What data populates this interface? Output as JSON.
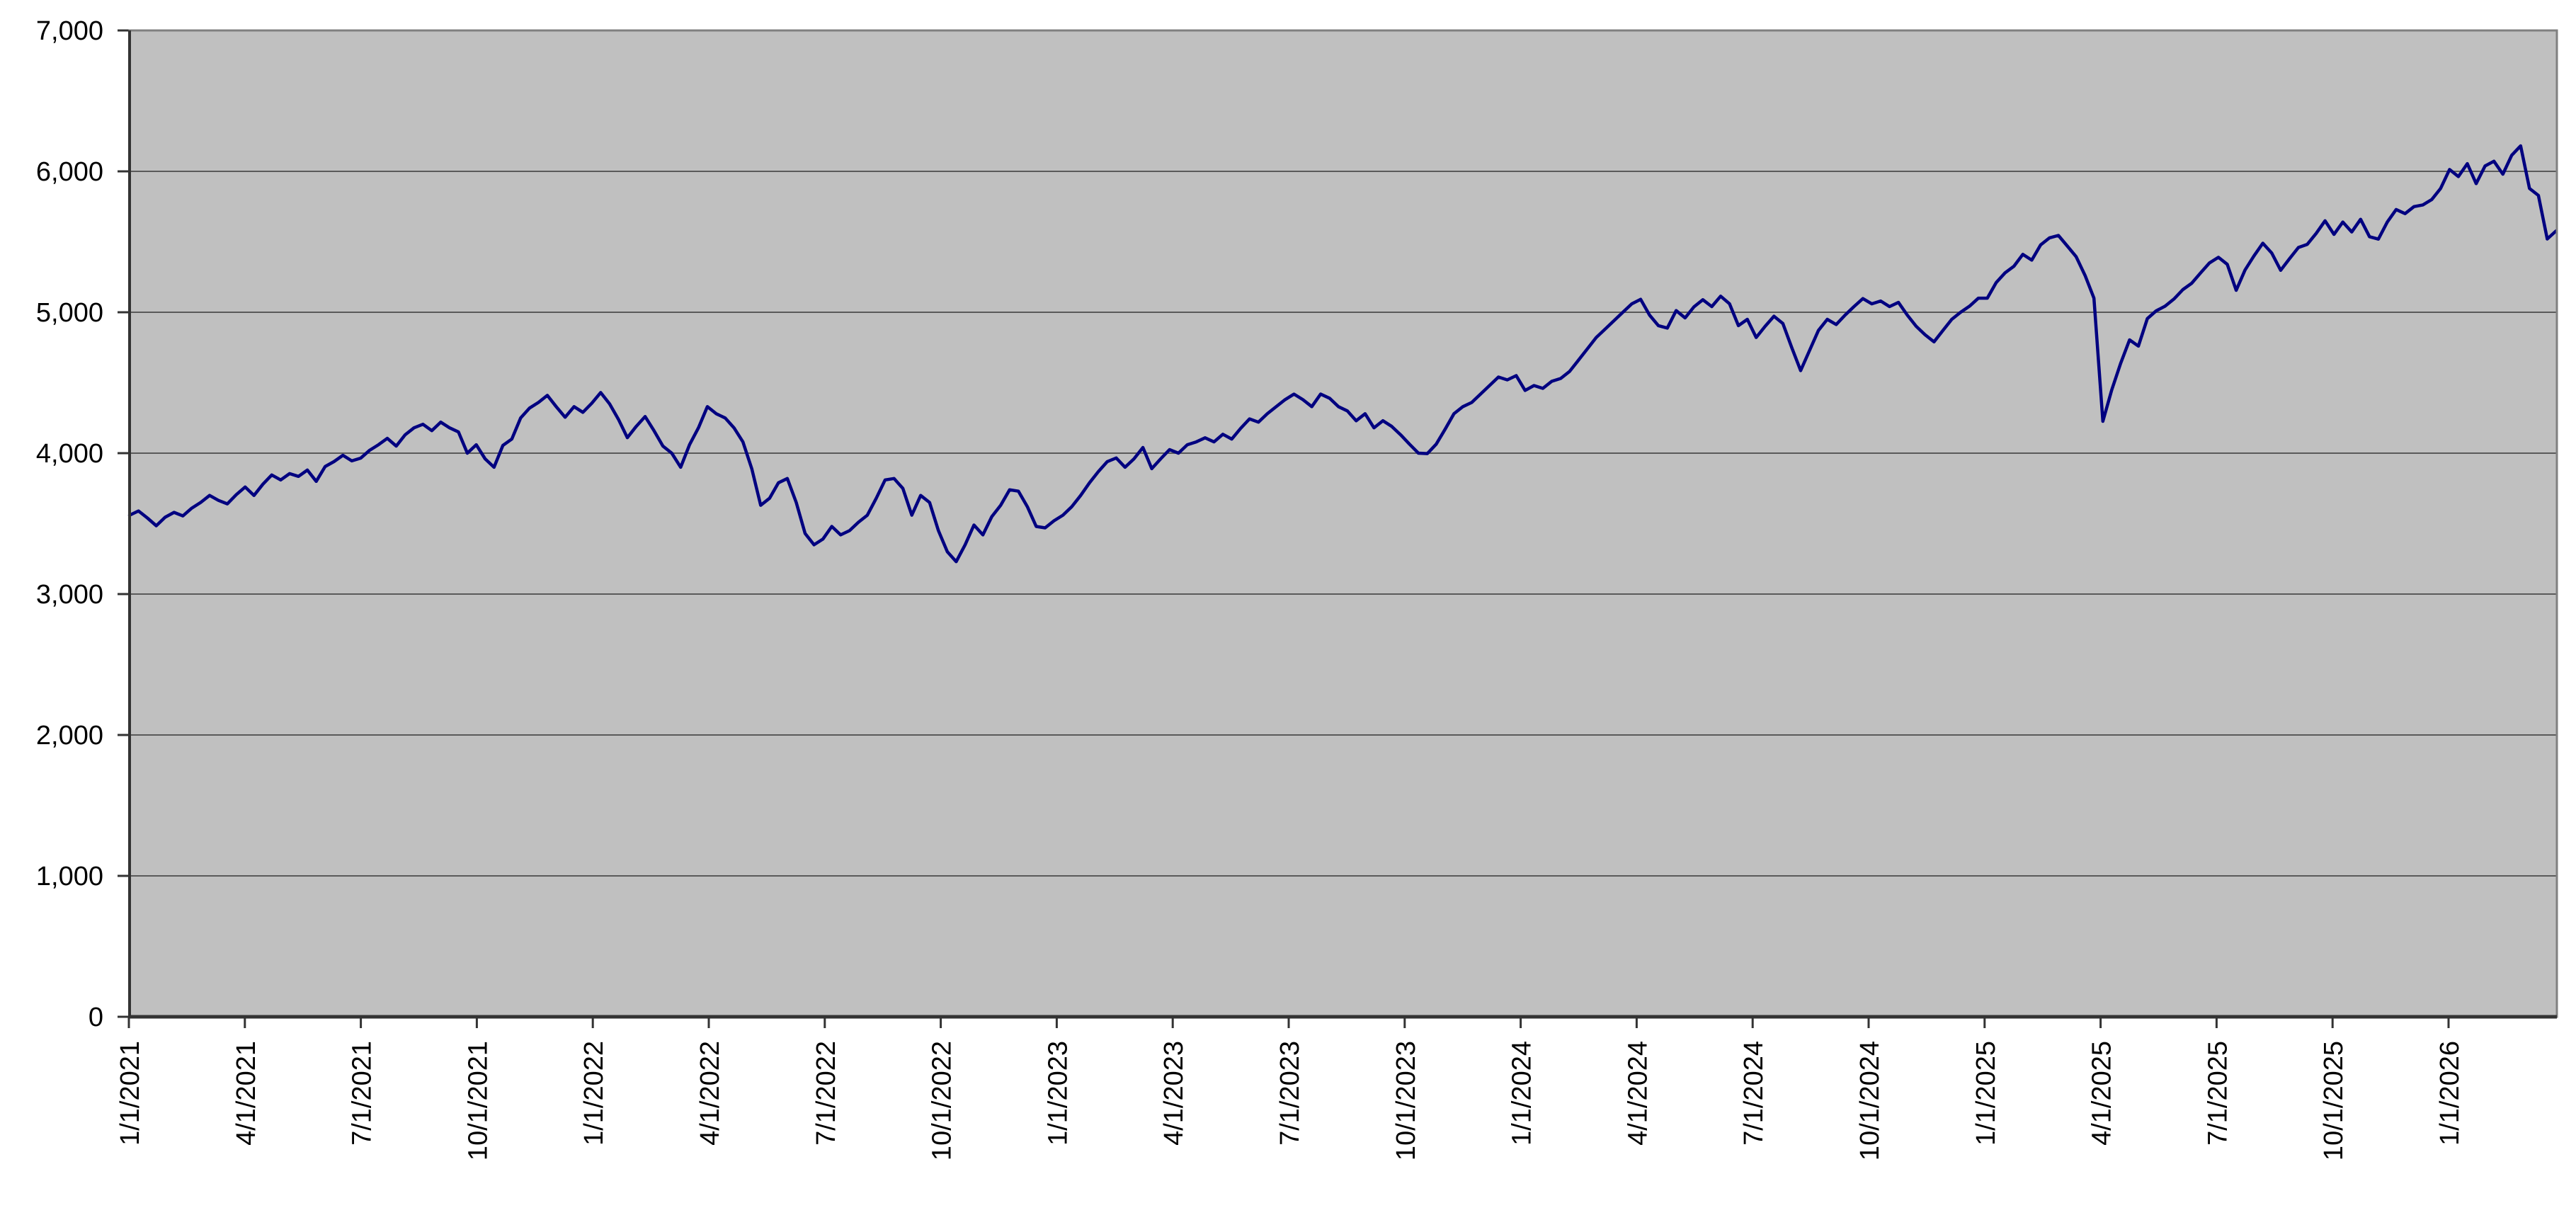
{
  "chart_data": {
    "type": "line",
    "title": "",
    "legend": false,
    "grid": true,
    "x_axis": {
      "tick_labels": [
        "1/1/2021",
        "4/1/2021",
        "7/1/2021",
        "10/1/2021",
        "1/1/2022",
        "4/1/2022",
        "7/1/2022",
        "10/1/2022",
        "1/1/2023",
        "4/1/2023",
        "7/1/2023",
        "10/1/2023",
        "1/1/2024",
        "4/1/2024",
        "7/1/2024",
        "10/1/2024",
        "1/1/2025",
        "4/1/2025",
        "7/1/2025",
        "10/1/2025",
        "1/1/2026"
      ],
      "label_rotation_deg": -90
    },
    "y_axis": {
      "min": 0,
      "max": 7000,
      "tick_step": 1000,
      "tick_labels": [
        "0",
        "1,000",
        "2,000",
        "3,000",
        "4,000",
        "5,000",
        "6,000",
        "7,000"
      ]
    },
    "series": [
      {
        "color": "#000080",
        "sampling": "weekly",
        "values": [
          3560,
          3590,
          3540,
          3485,
          3545,
          3580,
          3555,
          3610,
          3650,
          3700,
          3665,
          3640,
          3705,
          3760,
          3700,
          3780,
          3845,
          3810,
          3855,
          3835,
          3880,
          3800,
          3905,
          3940,
          3985,
          3945,
          3965,
          4020,
          4060,
          4105,
          4050,
          4130,
          4180,
          4205,
          4160,
          4220,
          4180,
          4150,
          4000,
          4060,
          3960,
          3900,
          4055,
          4100,
          4250,
          4320,
          4360,
          4410,
          4330,
          4255,
          4330,
          4290,
          4355,
          4430,
          4350,
          4240,
          4110,
          4190,
          4260,
          4160,
          4050,
          4000,
          3900,
          4060,
          4180,
          4330,
          4280,
          4250,
          4180,
          4080,
          3890,
          3630,
          3680,
          3790,
          3820,
          3650,
          3430,
          3350,
          3390,
          3480,
          3420,
          3450,
          3510,
          3560,
          3680,
          3810,
          3820,
          3750,
          3560,
          3700,
          3650,
          3450,
          3300,
          3230,
          3350,
          3490,
          3420,
          3550,
          3630,
          3740,
          3730,
          3620,
          3480,
          3470,
          3520,
          3560,
          3620,
          3700,
          3790,
          3870,
          3940,
          3966,
          3900,
          3960,
          4040,
          3890,
          3960,
          4025,
          4000,
          4060,
          4080,
          4109,
          4080,
          4134,
          4100,
          4176,
          4243,
          4220,
          4280,
          4330,
          4380,
          4419,
          4380,
          4330,
          4419,
          4390,
          4330,
          4300,
          4230,
          4280,
          4180,
          4230,
          4190,
          4130,
          4064,
          4000,
          3997,
          4064,
          4170,
          4280,
          4330,
          4360,
          4420,
          4480,
          4540,
          4520,
          4550,
          4445,
          4480,
          4460,
          4510,
          4530,
          4580,
          4660,
          4740,
          4821,
          4880,
          4940,
          5000,
          5060,
          5092,
          4980,
          4905,
          4888,
          5012,
          4960,
          5038,
          5089,
          5040,
          5114,
          5060,
          4905,
          4950,
          4821,
          4900,
          4972,
          4920,
          4750,
          4586,
          4728,
          4871,
          4950,
          4913,
          4980,
          5040,
          5097,
          5060,
          5080,
          5040,
          5070,
          4980,
          4900,
          4840,
          4790,
          4870,
          4950,
          5000,
          5043,
          5100,
          5100,
          5211,
          5280,
          5327,
          5411,
          5370,
          5478,
          5528,
          5545,
          5470,
          5394,
          5261,
          5100,
          4226,
          4448,
          4637,
          4804,
          4760,
          4955,
          5010,
          5043,
          5094,
          5161,
          5206,
          5280,
          5350,
          5390,
          5340,
          5156,
          5300,
          5400,
          5490,
          5420,
          5298,
          5380,
          5460,
          5482,
          5560,
          5649,
          5553,
          5640,
          5570,
          5660,
          5536,
          5519,
          5640,
          5729,
          5700,
          5750,
          5762,
          5800,
          5879,
          6013,
          5963,
          6055,
          5913,
          6038,
          6072,
          5980,
          6114,
          6181,
          5879,
          5829,
          5520,
          5578
        ]
      }
    ],
    "colors": {
      "line": "#000080",
      "plot_bg": "#c0c0c0",
      "gridline": "#5a5a5a",
      "plot_border": "#808080",
      "axis": "#333333",
      "tick": "#333333",
      "text": "#000000",
      "page_bg": "#ffffff"
    }
  }
}
